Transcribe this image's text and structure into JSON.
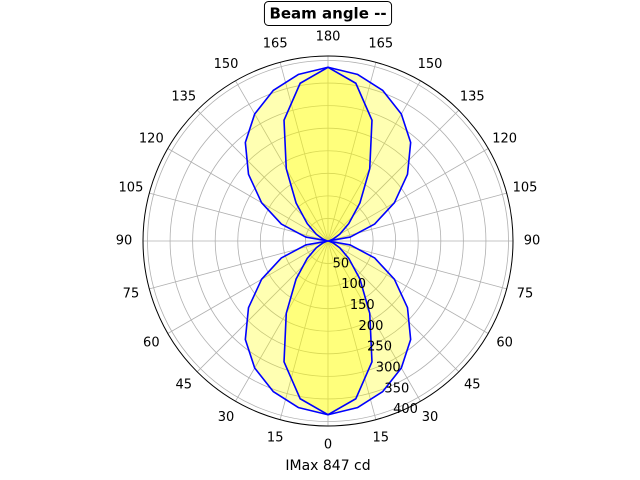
{
  "chart_data": {
    "type": "polar",
    "title": "Beam angle --",
    "xlabel": "IMax 847 cd",
    "theta": [
      0,
      10,
      20,
      30,
      40,
      50,
      60,
      70,
      80,
      90,
      100,
      110,
      120,
      130,
      140,
      150,
      160,
      170,
      180,
      190,
      200,
      210,
      220,
      230,
      240,
      250,
      260,
      270,
      280,
      290,
      300,
      310,
      320,
      330,
      340,
      350
    ],
    "series": [
      {
        "color": "#0000ff",
        "values": [
          385,
          375,
          355,
          325,
          285,
          230,
          170,
          110,
          50,
          0,
          50,
          110,
          170,
          230,
          285,
          325,
          355,
          375,
          385,
          375,
          355,
          325,
          285,
          230,
          170,
          110,
          50,
          0,
          50,
          110,
          170,
          230,
          285,
          325,
          355,
          375
        ]
      },
      {
        "color": "#0000ff",
        "values": [
          385,
          355,
          285,
          185,
          110,
          60,
          30,
          12,
          3,
          0,
          3,
          12,
          30,
          60,
          110,
          185,
          285,
          355,
          385,
          355,
          285,
          185,
          110,
          60,
          30,
          12,
          3,
          0,
          3,
          12,
          30,
          60,
          110,
          185,
          285,
          355
        ]
      }
    ],
    "fill_color": "#ffff00",
    "fill_alpha": 0.3,
    "rlim": [
      0,
      410
    ],
    "rticks": [
      50,
      100,
      150,
      200,
      250,
      300,
      350,
      400
    ],
    "thetaticks": [
      0,
      15,
      30,
      45,
      60,
      75,
      90,
      105,
      120,
      135,
      150,
      165,
      180,
      {
        "value": 195,
        "label": "165"
      },
      {
        "value": 210,
        "label": "150"
      },
      {
        "value": 225,
        "label": "135"
      },
      {
        "value": 240,
        "label": "120"
      },
      {
        "value": 255,
        "label": "105"
      },
      {
        "value": 270,
        "label": "90"
      },
      {
        "value": 285,
        "label": "75"
      },
      {
        "value": 300,
        "label": "60"
      },
      {
        "value": 315,
        "label": "45"
      },
      {
        "value": 330,
        "label": "30"
      },
      {
        "value": 345,
        "label": "15"
      }
    ],
    "grid": true
  }
}
